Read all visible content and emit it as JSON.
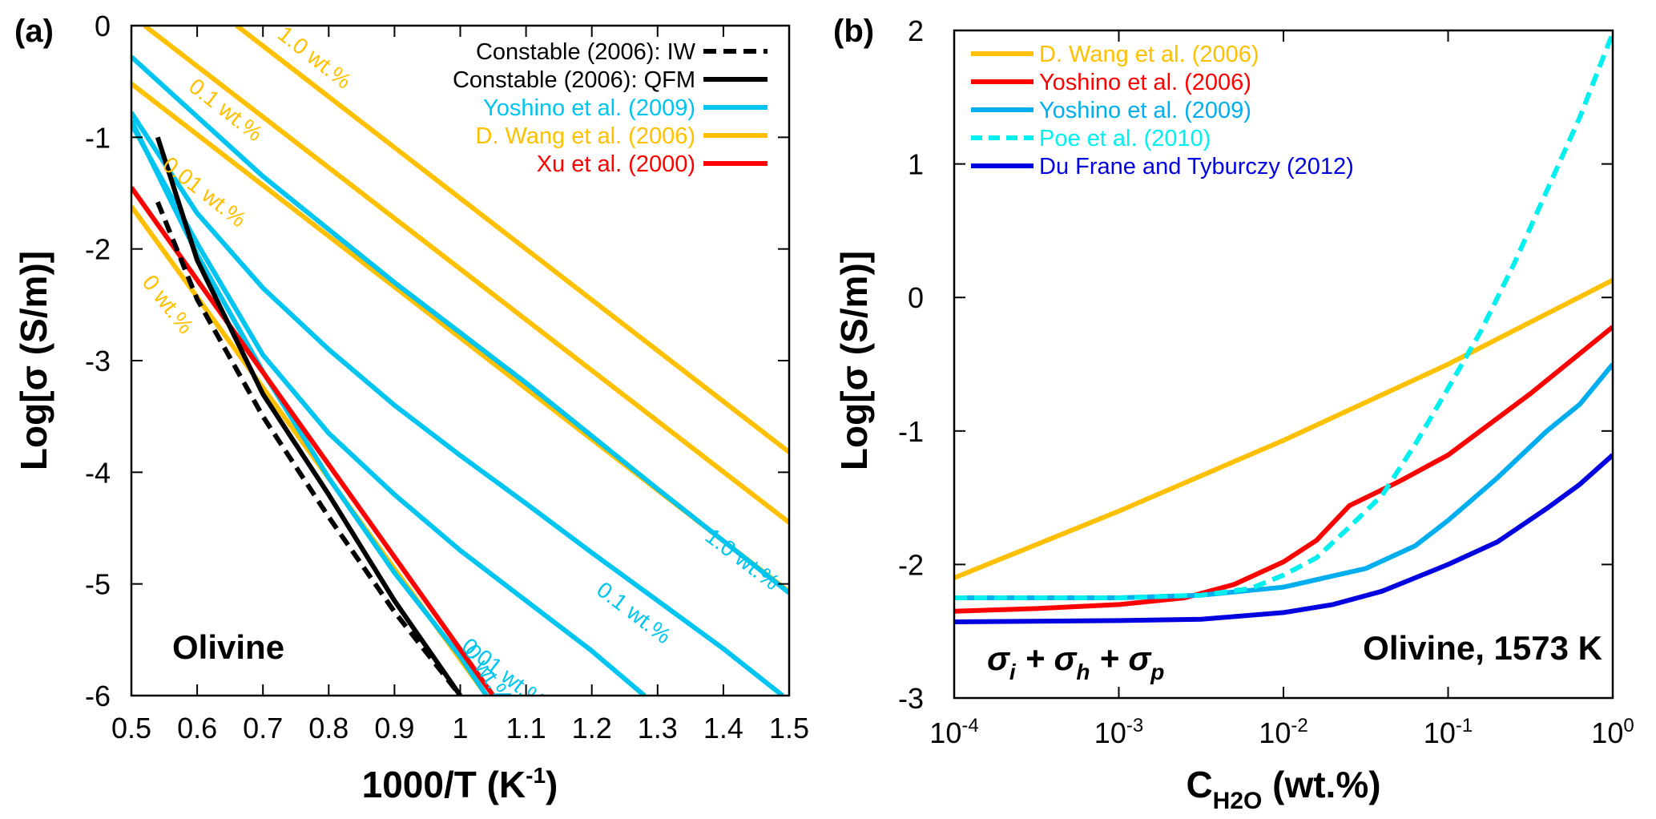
{
  "chart_data": [
    {
      "panel": "(a)",
      "type": "line",
      "title": "",
      "xlabel": "1000/T (K",
      "xlabel_sup": "-1",
      "xlabel_tail": ")",
      "ylabel": "Log[σ (S/m)]",
      "xlim": [
        0.5,
        1.5
      ],
      "ylim": [
        -6,
        0
      ],
      "xticks": [
        0.5,
        0.6,
        0.7,
        0.8,
        0.9,
        1.0,
        1.1,
        1.2,
        1.3,
        1.4,
        1.5
      ],
      "xtick_labels": [
        "0.5",
        "0.6",
        "0.7",
        "0.8",
        "0.9",
        "1",
        "1.1",
        "1.2",
        "1.3",
        "1.4",
        "1.5"
      ],
      "yticks": [
        0,
        -1,
        -2,
        -3,
        -4,
        -5,
        -6
      ],
      "ytick_labels": [
        "0",
        "-1",
        "-2",
        "-3",
        "-4",
        "-5",
        "-6"
      ],
      "grid": false,
      "legend_position": "top-right",
      "annotation": "Olivine",
      "legend": [
        {
          "label": "Constable (2006): IW",
          "color": "#000000",
          "dash": true
        },
        {
          "label": "Constable (2006): QFM",
          "color": "#000000",
          "dash": false
        },
        {
          "label": "Yoshino et al. (2009)",
          "color": "#00c5f0",
          "dash": false
        },
        {
          "label": "D. Wang et al. (2006)",
          "color": "#ffc000",
          "dash": false
        },
        {
          "label": "Xu et al. (2000)",
          "color": "#ff0000",
          "dash": false
        }
      ],
      "series": [
        {
          "name": "D. Wang et al. (2006) 1.0 wt.%",
          "color": "#ffc000",
          "dash": false,
          "label": "1.0 wt.%",
          "x": [
            0.66,
            1.5
          ],
          "y": [
            0,
            -3.82
          ]
        },
        {
          "name": "D. Wang et al. (2006) 0.1 wt.%",
          "color": "#ffc000",
          "dash": false,
          "label": "0.1 wt.%",
          "x": [
            0.52,
            1.5
          ],
          "y": [
            0,
            -4.45
          ]
        },
        {
          "name": "D. Wang et al. (2006) 0.01 wt.%",
          "color": "#ffc000",
          "dash": false,
          "label": "0.01 wt.%",
          "x": [
            0.5,
            1.5
          ],
          "y": [
            -0.52,
            -5.07
          ]
        },
        {
          "name": "D. Wang et al. (2006) 0 wt.%",
          "color": "#ffc000",
          "dash": false,
          "label": "0 wt.%",
          "x": [
            0.5,
            1.04
          ],
          "y": [
            -1.62,
            -6
          ]
        },
        {
          "name": "Yoshino et al. (2009) 1.0 wt.%",
          "color": "#00c5f0",
          "dash": false,
          "label": "1.0 wt.%",
          "x": [
            0.5,
            0.7,
            0.9,
            1.1,
            1.3,
            1.5
          ],
          "y": [
            -0.28,
            -1.35,
            -2.3,
            -3.2,
            -4.15,
            -5.08
          ]
        },
        {
          "name": "Yoshino et al. (2009) 0.1 wt.%",
          "color": "#00c5f0",
          "dash": false,
          "label": "0.1 wt.%",
          "x": [
            0.5,
            0.6,
            0.7,
            0.8,
            0.9,
            1.0,
            1.1,
            1.2,
            1.3,
            1.4,
            1.49
          ],
          "y": [
            -0.78,
            -1.68,
            -2.35,
            -2.9,
            -3.4,
            -3.85,
            -4.28,
            -4.72,
            -5.15,
            -5.58,
            -6
          ]
        },
        {
          "name": "Yoshino et al. (2009) 0.01 wt.%",
          "color": "#00c5f0",
          "dash": false,
          "label": "0.01 wt.%",
          "x": [
            0.5,
            0.6,
            0.7,
            0.8,
            0.9,
            1.0,
            1.1,
            1.2,
            1.28
          ],
          "y": [
            -0.88,
            -1.95,
            -2.95,
            -3.65,
            -4.2,
            -4.7,
            -5.15,
            -5.6,
            -6
          ]
        },
        {
          "name": "Yoshino et al. (2009) 0 wt.%",
          "color": "#00c5f0",
          "dash": false,
          "label": "0 wt.%",
          "x": [
            0.5,
            0.6,
            0.7,
            0.8,
            0.9,
            1.0,
            1.04
          ],
          "y": [
            -0.85,
            -2.05,
            -3.1,
            -4.05,
            -4.9,
            -5.65,
            -6
          ]
        },
        {
          "name": "Xu et al. (2000)",
          "color": "#ff0000",
          "dash": false,
          "x": [
            0.5,
            1.05
          ],
          "y": [
            -1.45,
            -6
          ]
        },
        {
          "name": "Constable (2006): QFM",
          "color": "#000000",
          "dash": false,
          "x": [
            0.54,
            0.6,
            0.7,
            0.8,
            0.9,
            1.0
          ],
          "y": [
            -1.0,
            -2.1,
            -3.3,
            -4.2,
            -5.15,
            -6.0
          ]
        },
        {
          "name": "Constable (2006): IW",
          "color": "#000000",
          "dash": true,
          "x": [
            0.54,
            0.6,
            0.7,
            0.8,
            0.9,
            1.0
          ],
          "y": [
            -1.58,
            -2.45,
            -3.5,
            -4.4,
            -5.25,
            -6.0
          ]
        }
      ]
    },
    {
      "panel": "(b)",
      "type": "line",
      "title": "",
      "xlabel": "C",
      "xlabel_sub": "H2O",
      "xlabel_tail": " (wt.%)",
      "ylabel": "Log[σ (S/m)]",
      "xscale": "log",
      "xlim": [
        0.0001,
        1
      ],
      "ylim": [
        -3,
        2
      ],
      "xticks": [
        0.0001,
        0.001,
        0.01,
        0.1,
        1
      ],
      "xtick_labels": [
        {
          "base": "10",
          "exp": "-4"
        },
        {
          "base": "10",
          "exp": "-3"
        },
        {
          "base": "10",
          "exp": "-2"
        },
        {
          "base": "10",
          "exp": "-1"
        },
        {
          "base": "10",
          "exp": "0"
        }
      ],
      "yticks": [
        2,
        1,
        0,
        -1,
        -2,
        -3
      ],
      "ytick_labels": [
        "2",
        "1",
        "0",
        "-1",
        "-2",
        "-3"
      ],
      "grid": false,
      "legend_position": "top-left",
      "annotation_left": "σi + σh + σp",
      "annotation_right": "Olivine, 1573 K",
      "legend": [
        {
          "label": "D. Wang et al. (2006)",
          "color": "#ffc000",
          "dash": false
        },
        {
          "label": "Yoshino et al. (2006)",
          "color": "#ff0000",
          "dash": false
        },
        {
          "label": "Yoshino et al. (2009)",
          "color": "#00aeef",
          "dash": false
        },
        {
          "label": "Poe et al. (2010)",
          "color": "#00f0f0",
          "dash": true
        },
        {
          "label": "Du Frane and Tyburczy (2012)",
          "color": "#0000e0",
          "dash": false
        }
      ],
      "series": [
        {
          "name": "D. Wang et al. (2006)",
          "color": "#ffc000",
          "dash": false,
          "log10x": [
            -4,
            -3,
            -2,
            -1,
            0
          ],
          "y": [
            -2.1,
            -1.6,
            -1.07,
            -0.5,
            0.13
          ]
        },
        {
          "name": "Yoshino et al. (2006)",
          "color": "#ff0000",
          "dash": false,
          "log10x": [
            -4,
            -3.5,
            -3,
            -2.6,
            -2.3,
            -2,
            -1.8,
            -1.6,
            -1.3,
            -1,
            -0.5,
            0
          ],
          "y": [
            -2.35,
            -2.33,
            -2.3,
            -2.25,
            -2.15,
            -1.98,
            -1.82,
            -1.56,
            -1.38,
            -1.18,
            -0.72,
            -0.22
          ]
        },
        {
          "name": "Yoshino et al. (2009)",
          "color": "#00aeef",
          "dash": false,
          "log10x": [
            -4,
            -3,
            -2.5,
            -2,
            -1.5,
            -1.2,
            -1,
            -0.7,
            -0.4,
            -0.2,
            0
          ],
          "y": [
            -2.25,
            -2.25,
            -2.23,
            -2.17,
            -2.03,
            -1.86,
            -1.67,
            -1.35,
            -1.0,
            -0.8,
            -0.5
          ]
        },
        {
          "name": "Poe et al. (2010)",
          "color": "#00f0f0",
          "dash": true,
          "log10x": [
            -4,
            -3,
            -2.5,
            -2.2,
            -2,
            -1.8,
            -1.6,
            -1.4,
            -1.2,
            -1,
            -0.8,
            -0.6,
            -0.4,
            -0.2,
            0
          ],
          "y": [
            -2.25,
            -2.25,
            -2.23,
            -2.18,
            -2.08,
            -1.95,
            -1.72,
            -1.48,
            -1.1,
            -0.68,
            -0.25,
            0.25,
            0.8,
            1.35,
            1.98
          ]
        },
        {
          "name": "Du Frane and Tyburczy (2012)",
          "color": "#0000e0",
          "dash": false,
          "log10x": [
            -4,
            -3,
            -2.5,
            -2,
            -1.7,
            -1.4,
            -1,
            -0.7,
            -0.4,
            -0.2,
            0
          ],
          "y": [
            -2.43,
            -2.42,
            -2.41,
            -2.36,
            -2.3,
            -2.2,
            -2.0,
            -1.83,
            -1.58,
            -1.4,
            -1.18
          ]
        }
      ]
    }
  ]
}
